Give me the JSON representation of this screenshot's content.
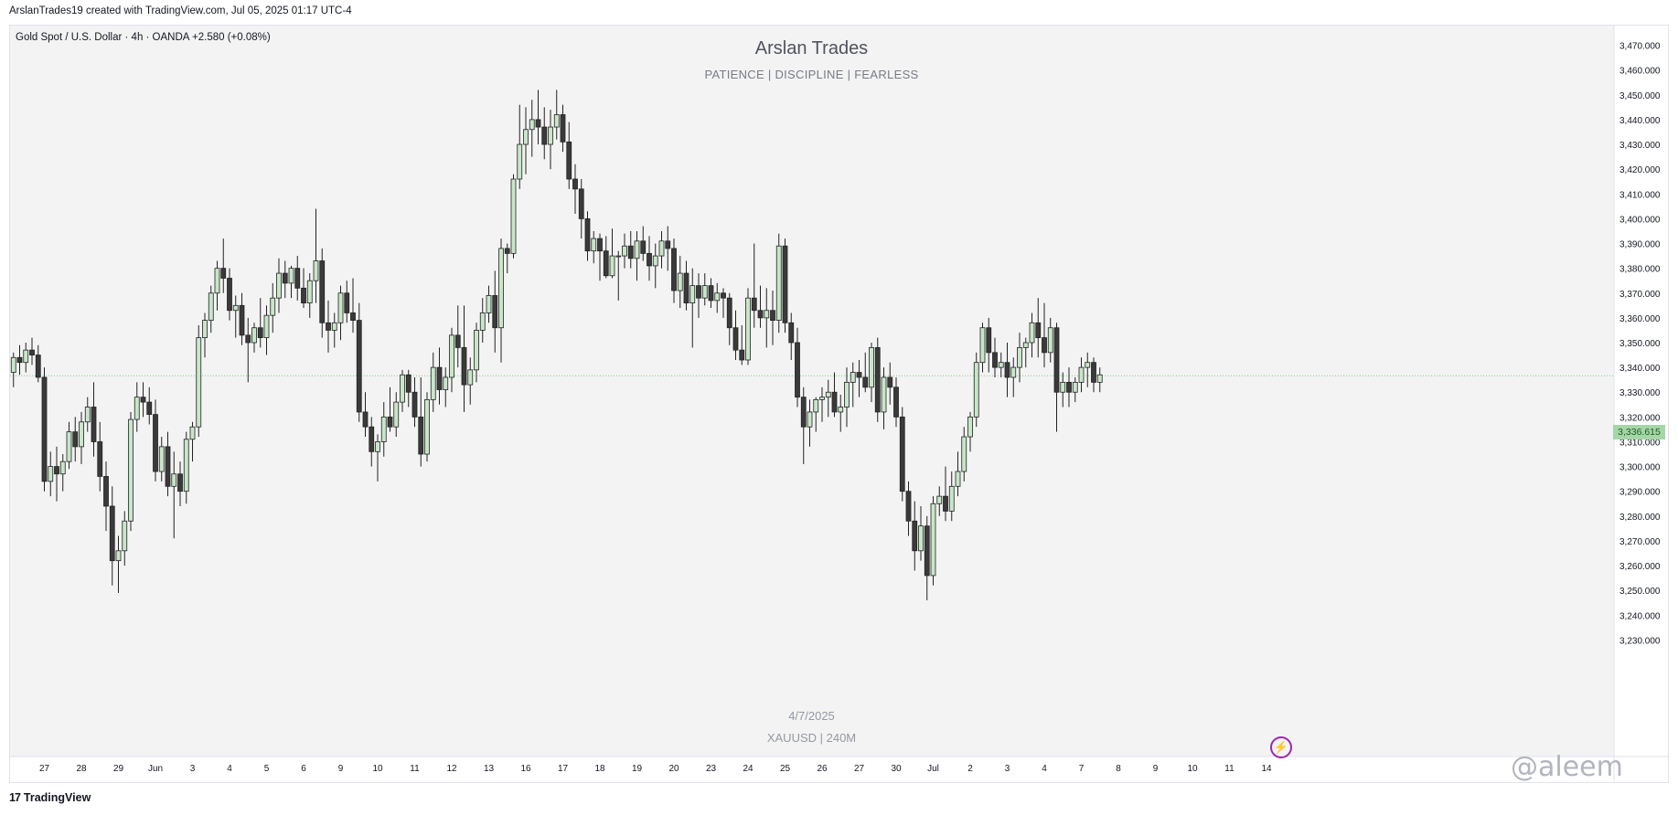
{
  "caption": "ArslanTrades19 created with TradingView.com, Jul 05, 2025 01:17 UTC-4",
  "symbol_line": "Gold Spot / U.S. Dollar · 4h · OANDA  +2.580 (+0.08%)",
  "footer_brand": "TradingView",
  "author_watermark": "@aleem",
  "colors": {
    "background": "#f3f3f3",
    "up_body": "#c8e6c9",
    "down_body": "#3a3a3a",
    "wick": "#222222",
    "last_price_line": "#81c784"
  },
  "icons": [
    "tradingview-logo-icon",
    "bolt-icon"
  ],
  "chart_data": {
    "type": "candlestick",
    "title": "Arslan Trades",
    "subtitle": "PATIENCE   |   DISCIPLINE   |   FEARLESS",
    "watermark_date": "4/7/2025",
    "watermark_symbol": "XAUUSD  |  240M",
    "last_price": 3336.615,
    "last_price_label": "3,336.615",
    "ylim": [
      3225,
      3475
    ],
    "y_ticks": [
      3230,
      3240,
      3250,
      3260,
      3270,
      3280,
      3290,
      3300,
      3310,
      3320,
      3330,
      3340,
      3350,
      3360,
      3370,
      3380,
      3390,
      3400,
      3410,
      3420,
      3430,
      3440,
      3450,
      3460,
      3470
    ],
    "y_tick_labels": [
      "3,230.000",
      "3,240.000",
      "3,250.000",
      "3,260.000",
      "3,270.000",
      "3,280.000",
      "3,290.000",
      "3,300.000",
      "3,310.000",
      "3,320.000",
      "3,330.000",
      "3,340.000",
      "3,350.000",
      "3,360.000",
      "3,370.000",
      "3,380.000",
      "3,390.000",
      "3,400.000",
      "3,410.000",
      "3,420.000",
      "3,430.000",
      "3,440.000",
      "3,450.000",
      "3,460.000",
      "3,470.000"
    ],
    "x_ticks": [
      "27",
      "28",
      "29",
      "Jun",
      "3",
      "4",
      "5",
      "6",
      "9",
      "10",
      "11",
      "12",
      "13",
      "16",
      "17",
      "18",
      "19",
      "20",
      "23",
      "24",
      "25",
      "26",
      "27",
      "30",
      "Jul",
      "2",
      "3",
      "4",
      "7",
      "8",
      "9",
      "10",
      "11",
      "14"
    ],
    "x_tick_bar_index": [
      6,
      12,
      18,
      24,
      30,
      36,
      42,
      48,
      54,
      60,
      66,
      72,
      78,
      84,
      90,
      96,
      102,
      108,
      114,
      120,
      126,
      132,
      138,
      144,
      150,
      156,
      162,
      168,
      174,
      180,
      186,
      192,
      198,
      204
    ],
    "candles": [
      [
        3336,
        3342,
        3326,
        3338
      ],
      [
        3338,
        3346,
        3332,
        3344
      ],
      [
        3344,
        3349,
        3337,
        3342
      ],
      [
        3342,
        3350,
        3338,
        3347
      ],
      [
        3347,
        3352,
        3341,
        3345
      ],
      [
        3345,
        3349,
        3334,
        3336
      ],
      [
        3336,
        3340,
        3290,
        3294
      ],
      [
        3294,
        3306,
        3288,
        3300
      ],
      [
        3300,
        3308,
        3286,
        3297
      ],
      [
        3297,
        3305,
        3290,
        3302
      ],
      [
        3302,
        3318,
        3299,
        3314
      ],
      [
        3314,
        3320,
        3302,
        3308
      ],
      [
        3308,
        3322,
        3301,
        3318
      ],
      [
        3318,
        3328,
        3314,
        3324
      ],
      [
        3324,
        3334,
        3304,
        3310
      ],
      [
        3310,
        3318,
        3290,
        3296
      ],
      [
        3296,
        3302,
        3274,
        3284
      ],
      [
        3284,
        3292,
        3252,
        3262
      ],
      [
        3262,
        3272,
        3249,
        3266
      ],
      [
        3266,
        3282,
        3260,
        3278
      ],
      [
        3278,
        3322,
        3274,
        3319
      ],
      [
        3319,
        3334,
        3314,
        3328
      ],
      [
        3328,
        3334,
        3320,
        3326
      ],
      [
        3326,
        3332,
        3317,
        3321
      ],
      [
        3321,
        3327,
        3294,
        3298
      ],
      [
        3298,
        3312,
        3294,
        3308
      ],
      [
        3308,
        3314,
        3288,
        3292
      ],
      [
        3292,
        3306,
        3271,
        3297
      ],
      [
        3297,
        3302,
        3284,
        3290
      ],
      [
        3290,
        3314,
        3285,
        3311
      ],
      [
        3311,
        3318,
        3302,
        3316
      ],
      [
        3316,
        3357,
        3312,
        3352
      ],
      [
        3352,
        3362,
        3344,
        3359
      ],
      [
        3359,
        3373,
        3354,
        3370
      ],
      [
        3370,
        3383,
        3363,
        3380
      ],
      [
        3380,
        3392,
        3370,
        3376
      ],
      [
        3376,
        3380,
        3359,
        3363
      ],
      [
        3363,
        3369,
        3352,
        3365
      ],
      [
        3365,
        3370,
        3349,
        3353
      ],
      [
        3353,
        3360,
        3334,
        3350
      ],
      [
        3350,
        3358,
        3346,
        3356
      ],
      [
        3356,
        3368,
        3348,
        3352
      ],
      [
        3352,
        3365,
        3345,
        3361
      ],
      [
        3361,
        3374,
        3354,
        3368
      ],
      [
        3368,
        3384,
        3362,
        3378
      ],
      [
        3378,
        3383,
        3368,
        3374
      ],
      [
        3374,
        3381,
        3368,
        3380
      ],
      [
        3380,
        3385,
        3367,
        3372
      ],
      [
        3372,
        3380,
        3364,
        3366
      ],
      [
        3366,
        3378,
        3360,
        3375
      ],
      [
        3375,
        3404,
        3366,
        3383
      ],
      [
        3383,
        3388,
        3352,
        3358
      ],
      [
        3358,
        3367,
        3346,
        3355
      ],
      [
        3355,
        3362,
        3348,
        3358
      ],
      [
        3358,
        3373,
        3351,
        3370
      ],
      [
        3370,
        3375,
        3358,
        3362
      ],
      [
        3362,
        3376,
        3354,
        3359
      ],
      [
        3359,
        3366,
        3318,
        3322
      ],
      [
        3322,
        3330,
        3312,
        3316
      ],
      [
        3316,
        3320,
        3300,
        3306
      ],
      [
        3306,
        3313,
        3294,
        3310
      ],
      [
        3310,
        3326,
        3304,
        3320
      ],
      [
        3320,
        3332,
        3314,
        3316
      ],
      [
        3316,
        3330,
        3312,
        3326
      ],
      [
        3326,
        3339,
        3322,
        3337
      ],
      [
        3337,
        3339,
        3324,
        3330
      ],
      [
        3330,
        3336,
        3316,
        3320
      ],
      [
        3320,
        3336,
        3300,
        3305
      ],
      [
        3305,
        3330,
        3302,
        3327
      ],
      [
        3327,
        3346,
        3322,
        3340
      ],
      [
        3340,
        3348,
        3325,
        3331
      ],
      [
        3331,
        3340,
        3324,
        3336
      ],
      [
        3336,
        3356,
        3330,
        3353
      ],
      [
        3353,
        3365,
        3340,
        3348
      ],
      [
        3348,
        3365,
        3322,
        3333
      ],
      [
        3333,
        3344,
        3325,
        3339
      ],
      [
        3339,
        3358,
        3334,
        3355
      ],
      [
        3355,
        3368,
        3350,
        3362
      ],
      [
        3362,
        3373,
        3358,
        3369
      ],
      [
        3369,
        3379,
        3346,
        3356
      ],
      [
        3356,
        3392,
        3342,
        3388
      ],
      [
        3388,
        3390,
        3378,
        3386
      ],
      [
        3386,
        3418,
        3384,
        3416
      ],
      [
        3416,
        3446,
        3412,
        3430
      ],
      [
        3430,
        3445,
        3418,
        3436
      ],
      [
        3436,
        3448,
        3425,
        3440
      ],
      [
        3440,
        3452,
        3430,
        3437
      ],
      [
        3437,
        3445,
        3424,
        3430
      ],
      [
        3430,
        3444,
        3420,
        3437
      ],
      [
        3437,
        3452,
        3432,
        3442
      ],
      [
        3442,
        3446,
        3427,
        3431
      ],
      [
        3431,
        3439,
        3412,
        3416
      ],
      [
        3416,
        3422,
        3402,
        3412
      ],
      [
        3412,
        3416,
        3392,
        3400
      ],
      [
        3400,
        3403,
        3383,
        3387
      ],
      [
        3387,
        3395,
        3382,
        3392
      ],
      [
        3392,
        3394,
        3375,
        3387
      ],
      [
        3387,
        3393,
        3376,
        3377
      ],
      [
        3377,
        3396,
        3376,
        3385
      ],
      [
        3385,
        3387,
        3367,
        3385
      ],
      [
        3385,
        3394,
        3380,
        3389
      ],
      [
        3389,
        3395,
        3380,
        3384
      ],
      [
        3384,
        3395,
        3375,
        3391
      ],
      [
        3391,
        3397,
        3383,
        3386
      ],
      [
        3386,
        3393,
        3375,
        3381
      ],
      [
        3381,
        3390,
        3372,
        3385
      ],
      [
        3385,
        3395,
        3380,
        3391
      ],
      [
        3391,
        3397,
        3379,
        3388
      ],
      [
        3388,
        3392,
        3366,
        3371
      ],
      [
        3371,
        3385,
        3364,
        3378
      ],
      [
        3378,
        3383,
        3363,
        3366
      ],
      [
        3366,
        3380,
        3348,
        3373
      ],
      [
        3373,
        3378,
        3360,
        3368
      ],
      [
        3368,
        3378,
        3365,
        3373
      ],
      [
        3373,
        3376,
        3364,
        3367
      ],
      [
        3367,
        3374,
        3362,
        3370
      ],
      [
        3370,
        3372,
        3360,
        3368
      ],
      [
        3368,
        3370,
        3349,
        3356
      ],
      [
        3356,
        3363,
        3343,
        3347
      ],
      [
        3347,
        3357,
        3341,
        3343
      ],
      [
        3343,
        3372,
        3341,
        3368
      ],
      [
        3368,
        3390,
        3356,
        3363
      ],
      [
        3363,
        3373,
        3356,
        3360
      ],
      [
        3360,
        3372,
        3348,
        3363
      ],
      [
        3363,
        3371,
        3349,
        3359
      ],
      [
        3359,
        3394,
        3354,
        3389
      ],
      [
        3389,
        3392,
        3354,
        3358
      ],
      [
        3358,
        3362,
        3343,
        3350
      ],
      [
        3350,
        3356,
        3324,
        3328
      ],
      [
        3328,
        3332,
        3301,
        3316
      ],
      [
        3316,
        3327,
        3308,
        3322
      ],
      [
        3322,
        3328,
        3314,
        3327
      ],
      [
        3327,
        3332,
        3318,
        3328
      ],
      [
        3328,
        3335,
        3320,
        3330
      ],
      [
        3330,
        3338,
        3320,
        3322
      ],
      [
        3322,
        3329,
        3314,
        3324
      ],
      [
        3324,
        3340,
        3316,
        3334
      ],
      [
        3334,
        3342,
        3324,
        3338
      ],
      [
        3338,
        3343,
        3328,
        3336
      ],
      [
        3336,
        3346,
        3330,
        3332
      ],
      [
        3332,
        3350,
        3326,
        3348
      ],
      [
        3348,
        3352,
        3318,
        3322
      ],
      [
        3322,
        3340,
        3315,
        3336
      ],
      [
        3336,
        3342,
        3325,
        3332
      ],
      [
        3332,
        3336,
        3316,
        3320
      ],
      [
        3320,
        3324,
        3286,
        3290
      ],
      [
        3290,
        3294,
        3272,
        3278
      ],
      [
        3278,
        3286,
        3258,
        3266
      ],
      [
        3266,
        3284,
        3262,
        3276
      ],
      [
        3276,
        3280,
        3246,
        3256
      ],
      [
        3256,
        3288,
        3252,
        3285
      ],
      [
        3285,
        3292,
        3280,
        3288
      ],
      [
        3288,
        3300,
        3278,
        3282
      ],
      [
        3282,
        3298,
        3278,
        3292
      ],
      [
        3292,
        3306,
        3288,
        3298
      ],
      [
        3298,
        3316,
        3294,
        3312
      ],
      [
        3312,
        3322,
        3306,
        3320
      ],
      [
        3320,
        3346,
        3316,
        3342
      ],
      [
        3342,
        3358,
        3338,
        3356
      ],
      [
        3356,
        3360,
        3338,
        3346
      ],
      [
        3346,
        3352,
        3336,
        3340
      ],
      [
        3340,
        3346,
        3336,
        3342
      ],
      [
        3342,
        3350,
        3328,
        3336
      ],
      [
        3336,
        3344,
        3328,
        3340
      ],
      [
        3340,
        3354,
        3334,
        3348
      ],
      [
        3348,
        3352,
        3340,
        3350
      ],
      [
        3350,
        3362,
        3344,
        3358
      ],
      [
        3358,
        3368,
        3344,
        3352
      ],
      [
        3352,
        3366,
        3340,
        3346
      ],
      [
        3346,
        3360,
        3342,
        3356
      ],
      [
        3356,
        3358,
        3314,
        3330
      ],
      [
        3330,
        3338,
        3324,
        3334
      ],
      [
        3334,
        3340,
        3324,
        3330
      ],
      [
        3330,
        3336,
        3326,
        3334
      ],
      [
        3334,
        3344,
        3330,
        3340
      ],
      [
        3340,
        3346,
        3332,
        3342
      ],
      [
        3342,
        3344,
        3330,
        3334
      ],
      [
        3334,
        3340,
        3330,
        3337
      ]
    ]
  }
}
